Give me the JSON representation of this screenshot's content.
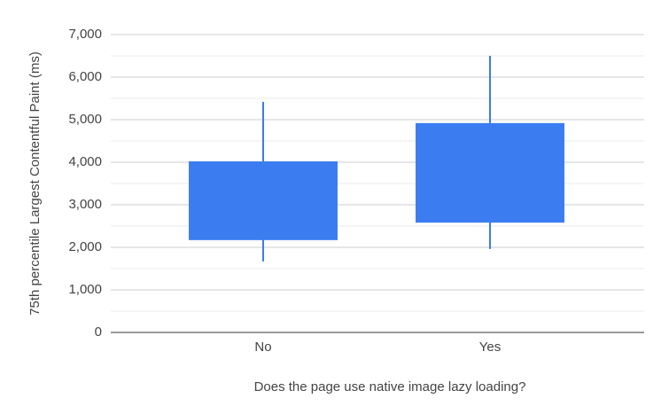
{
  "chart_data": {
    "type": "box",
    "x_label": "Does the page use native image lazy loading?",
    "y_label": "75th percentile Largest Contentful Paint (ms)",
    "categories": [
      "No",
      "Yes"
    ],
    "low": [
      1670,
      1960
    ],
    "q1": [
      2170,
      2580
    ],
    "q3": [
      4020,
      4920
    ],
    "high": [
      5420,
      6500
    ],
    "color": "#3b7cf0",
    "ylim": [
      0,
      7000
    ],
    "yticks": [
      0,
      {
        "value": 1000,
        "label": "1,000"
      },
      {
        "value": 2000,
        "label": "2,000"
      },
      {
        "value": 3000,
        "label": "3,000"
      },
      {
        "value": 4000,
        "label": "4,000"
      },
      {
        "value": 5000,
        "label": "5,000"
      },
      {
        "value": 6000,
        "label": "6,000"
      },
      {
        "value": 7000,
        "label": "7,000"
      }
    ],
    "minor_yticks": [
      500,
      1500,
      2500,
      3500,
      4500,
      5500,
      6500
    ],
    "grid": true
  }
}
